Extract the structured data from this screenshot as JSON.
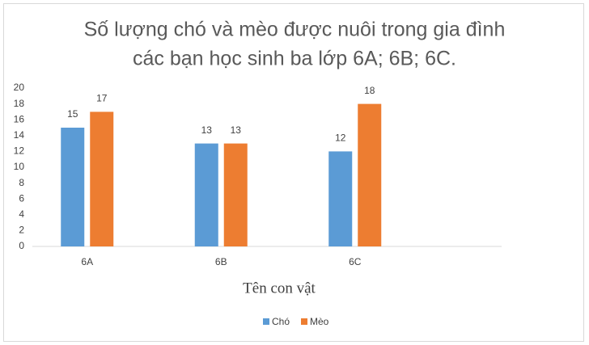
{
  "chart_data": {
    "type": "bar",
    "title": [
      "Số lượng chó và mèo được nuôi trong gia đình",
      "các bạn học sinh ba lớp 6A; 6B; 6C."
    ],
    "x_label": "Tên con vật",
    "categories": [
      "6A",
      "6B",
      "6C"
    ],
    "series": [
      {
        "name": "Chó",
        "color": "#5b9bd5",
        "values": [
          15,
          13,
          12
        ]
      },
      {
        "name": "Mèo",
        "color": "#ed7d31",
        "values": [
          17,
          13,
          18
        ]
      }
    ],
    "ylim": [
      0,
      20
    ],
    "yticks": [
      0,
      2,
      4,
      6,
      8,
      10,
      12,
      14,
      16,
      18,
      20
    ],
    "grid": false,
    "legend": "bottom"
  }
}
